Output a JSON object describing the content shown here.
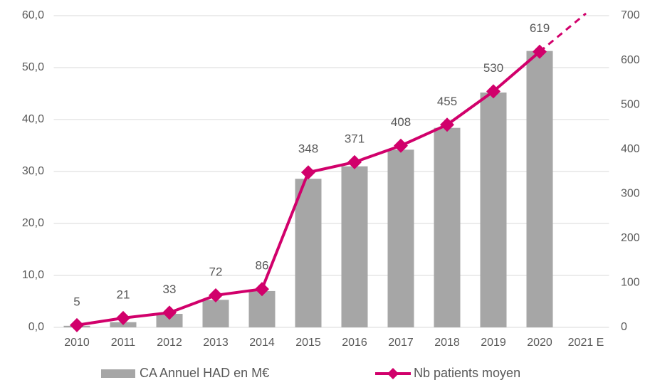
{
  "chart_data": {
    "type": "bar-line",
    "categories": [
      "2010",
      "2011",
      "2012",
      "2013",
      "2014",
      "2015",
      "2016",
      "2017",
      "2018",
      "2019",
      "2020",
      "2021 E"
    ],
    "series": [
      {
        "name": "CA Annuel HAD en M€",
        "type": "bar",
        "color": "#a6a6a6",
        "values": [
          0.3,
          1.0,
          2.6,
          5.3,
          7.0,
          28.6,
          31.0,
          34.2,
          38.4,
          45.2,
          53.2,
          null
        ]
      },
      {
        "name": "Nb patients moyen",
        "type": "line",
        "axis": "y2",
        "color": "#d1006b",
        "values": [
          5,
          21,
          33,
          72,
          86,
          348,
          371,
          408,
          455,
          530,
          619,
          null
        ],
        "estimate": 705
      }
    ],
    "ylim": [
      0,
      60
    ],
    "yticks": [
      {
        "value": 0,
        "label": "0,0"
      },
      {
        "value": 10,
        "label": "10,0"
      },
      {
        "value": 20,
        "label": "20,0"
      },
      {
        "value": 30,
        "label": "30,0"
      },
      {
        "value": 40,
        "label": "40,0"
      },
      {
        "value": 50,
        "label": "50,0"
      },
      {
        "value": 60,
        "label": "60,0"
      }
    ],
    "y2lim": [
      0,
      700
    ],
    "y2ticks": [
      0,
      100,
      200,
      300,
      400,
      500,
      600,
      700
    ],
    "grid": true,
    "legend": "bottom"
  }
}
